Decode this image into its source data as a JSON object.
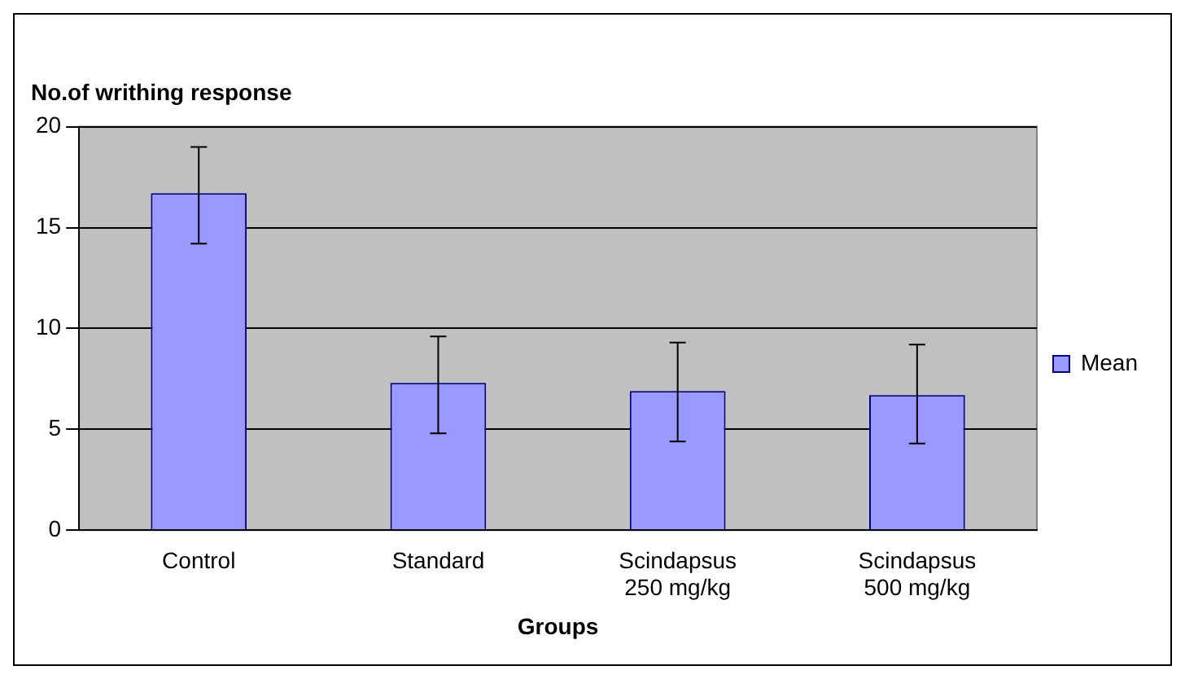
{
  "chart_data": {
    "type": "bar",
    "title": "No.of writhing response",
    "xlabel": "Groups",
    "categories": [
      "Control",
      "Standard",
      "Scindapsus 250 mg/kg",
      "Scindapsus 500 mg/kg"
    ],
    "series": [
      {
        "name": "Mean",
        "color": "#9999ff",
        "values": [
          16.7,
          7.3,
          6.9,
          6.7
        ],
        "errors": [
          [
            14.2,
            19.0
          ],
          [
            4.8,
            9.6
          ],
          [
            4.4,
            9.3
          ],
          [
            4.3,
            9.2
          ]
        ]
      }
    ],
    "ylim": [
      0,
      20
    ],
    "yticks": [
      0,
      5,
      10,
      15,
      20
    ],
    "grid": "y",
    "legend": "right"
  }
}
